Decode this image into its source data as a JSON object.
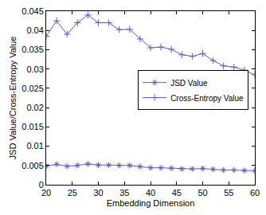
{
  "chart_data": {
    "type": "line",
    "x_label": "Embedding Dimension",
    "y_label": "JSD Value/Cross-Entropy Value",
    "x": [
      20,
      22,
      24,
      26,
      28,
      30,
      32,
      34,
      36,
      38,
      40,
      42,
      44,
      46,
      48,
      50,
      52,
      54,
      56,
      58,
      60
    ],
    "series": [
      {
        "name": "JSD Value",
        "color": "#5a5ac8",
        "marker": "star",
        "values": [
          0.0048,
          0.0053,
          0.0048,
          0.005,
          0.0054,
          0.0051,
          0.0051,
          0.005,
          0.005,
          0.0047,
          0.0044,
          0.0044,
          0.0043,
          0.0041,
          0.0041,
          0.0042,
          0.004,
          0.0038,
          0.0038,
          0.0037,
          0.0036
        ]
      },
      {
        "name": "Cross-Entropy Value",
        "color": "#5a5ac8",
        "marker": "cross",
        "values": [
          0.0385,
          0.0425,
          0.039,
          0.042,
          0.044,
          0.042,
          0.042,
          0.0402,
          0.0403,
          0.0378,
          0.0355,
          0.0357,
          0.0351,
          0.0337,
          0.0333,
          0.034,
          0.0322,
          0.0308,
          0.0305,
          0.0297,
          0.0285
        ]
      }
    ],
    "xlim": [
      20,
      60
    ],
    "xticks": [
      20,
      25,
      30,
      35,
      40,
      45,
      50,
      55,
      60
    ],
    "ylim": [
      0,
      0.045
    ],
    "yticks": [
      0,
      0.005,
      0.01,
      0.015,
      0.02,
      0.025,
      0.03,
      0.035,
      0.04,
      0.045
    ],
    "grid": false,
    "legend": "right"
  }
}
